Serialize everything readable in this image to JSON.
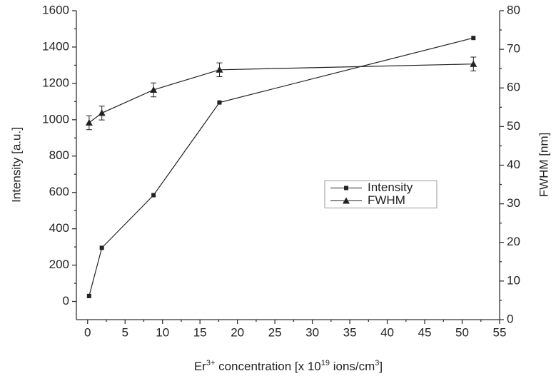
{
  "chart_data": {
    "type": "line",
    "xlabel": [
      "Er",
      "3+",
      " concentration [x 10",
      "19",
      " ions/cm",
      "3",
      "]"
    ],
    "ylabel": "Intensity [a.u.]",
    "y2label": "FWHM [nm]",
    "x": [
      0.2,
      1.9,
      8.8,
      17.6,
      51.5
    ],
    "series": [
      {
        "name": "Intensity",
        "color": "#222222",
        "marker": "square",
        "values": [
          30,
          295,
          585,
          1095,
          1450
        ]
      },
      {
        "name": "FWHM",
        "color": "#222222",
        "marker": "triangle",
        "axis": "y2",
        "values": [
          51,
          53.5,
          59.5,
          64.7,
          66.2
        ],
        "errors": [
          1.8,
          1.8,
          1.8,
          1.8,
          1.8
        ]
      }
    ],
    "xlim": [
      -1.5,
      55
    ],
    "xticks": [
      0,
      5,
      10,
      15,
      20,
      25,
      30,
      35,
      40,
      45,
      50,
      55
    ],
    "ylim": [
      -100,
      1600
    ],
    "yticks": [
      0,
      200,
      400,
      600,
      800,
      1000,
      1200,
      1400,
      1600
    ],
    "y2lim": [
      0,
      80
    ],
    "y2ticks": [
      0,
      10,
      20,
      30,
      40,
      50,
      60,
      70,
      80
    ],
    "grid": false,
    "legend": "center-right"
  }
}
